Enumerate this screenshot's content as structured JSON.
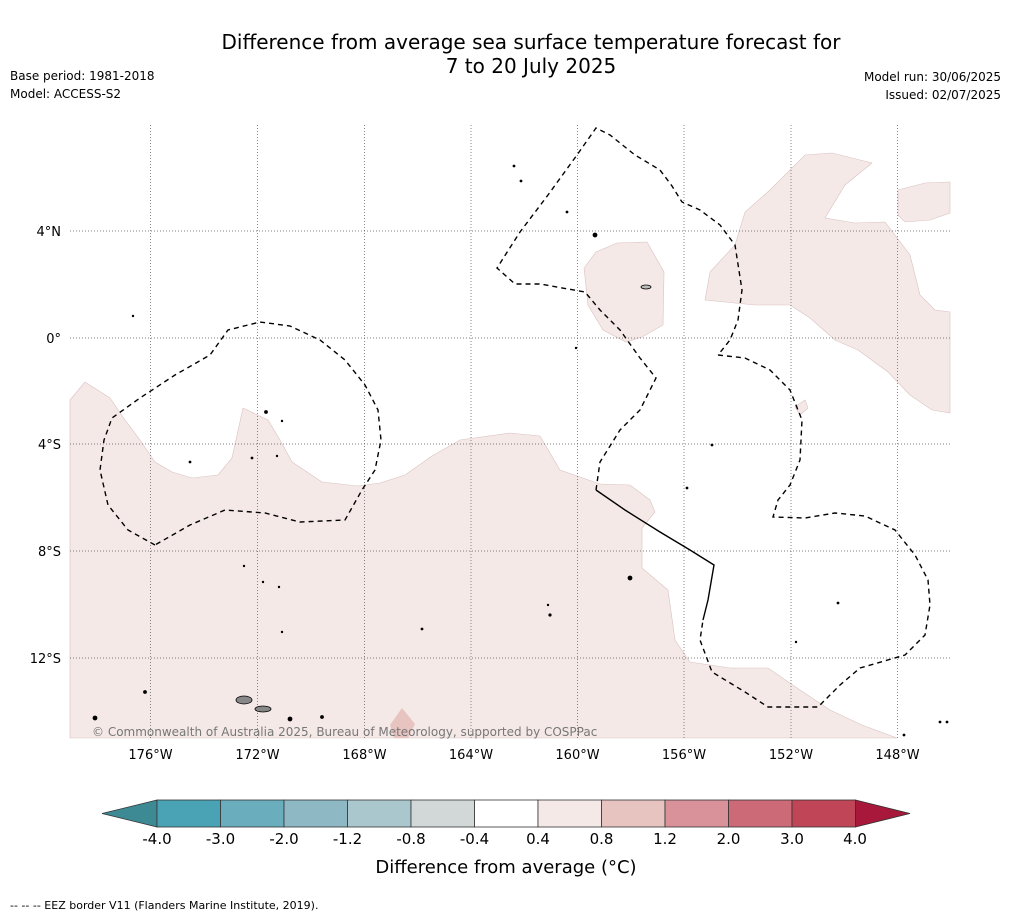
{
  "title_line1": "Difference from average sea surface temperature forecast for",
  "title_line2": "7 to 20 July 2025",
  "base_period": "Base period: 1981-2018",
  "model": "Model: ACCESS-S2",
  "model_run": "Model run: 30/06/2025",
  "issued": "Issued: 02/07/2025",
  "map": {
    "lon_ticks": [
      "176°W",
      "172°W",
      "168°W",
      "164°W",
      "160°W",
      "156°W",
      "152°W",
      "148°W"
    ],
    "lat_ticks": [
      "4°N",
      "0°",
      "4°S",
      "8°S",
      "12°S"
    ],
    "copyright": "© Commonwealth of Australia 2025, Bureau of Meteorology, supported by COSPPac",
    "warm_fill": "#f5e9e8",
    "warm_fill_2": "#e7c4c0"
  },
  "colorbar": {
    "label": "Difference from average (°C)",
    "ticks": [
      "-4.0",
      "-3.0",
      "-2.0",
      "-1.2",
      "-0.8",
      "-0.4",
      "0.4",
      "0.8",
      "1.2",
      "2.0",
      "3.0",
      "4.0"
    ],
    "colors": [
      "#3d8a95",
      "#4aa3b5",
      "#6aadbd",
      "#8db8c4",
      "#a9c7cd",
      "#d2d8d8",
      "#ffffff",
      "#f5e9e8",
      "#e7c4c0",
      "#d9919a",
      "#cc6a77",
      "#c04657",
      "#a8183a"
    ]
  },
  "footer": "--  --  -- EEZ border V11 (Flanders Marine Institute, 2019)."
}
